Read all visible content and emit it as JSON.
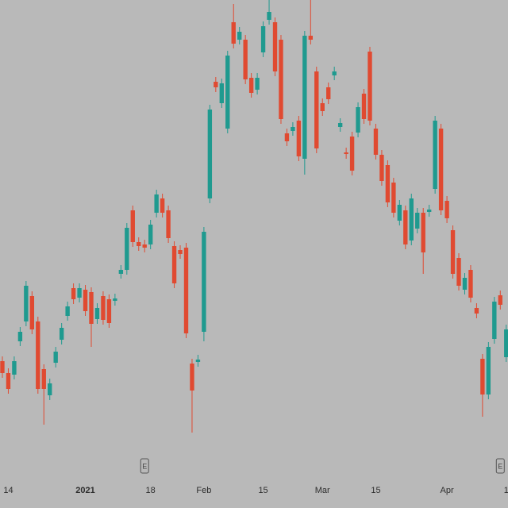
{
  "chart_data": {
    "type": "candlestick",
    "up_color": "#1f9a8f",
    "down_color": "#e04a31",
    "ylim": [
      0,
      640
    ],
    "xlim": [
      -0.4,
      85.3
    ],
    "xticks": [
      {
        "value": 1,
        "label": "14"
      },
      {
        "value": 14,
        "label": "2021"
      },
      {
        "value": 25,
        "label": "18"
      },
      {
        "value": 34,
        "label": "Feb"
      },
      {
        "value": 44,
        "label": "15"
      },
      {
        "value": 54,
        "label": "Mar"
      },
      {
        "value": 63,
        "label": "15"
      },
      {
        "value": 75,
        "label": "Apr"
      },
      {
        "value": 85,
        "label": "1"
      }
    ],
    "events": [
      {
        "index": 24,
        "label": "E"
      },
      {
        "index": 84,
        "label": "E"
      }
    ],
    "open": [
      185,
      170,
      168,
      210,
      235,
      267,
      235,
      175,
      142,
      183,
      212,
      242,
      277,
      265,
      275,
      272,
      238,
      267,
      263,
      261,
      295,
      300,
      375,
      335,
      332,
      332,
      372,
      390,
      375,
      330,
      325,
      328,
      182,
      184,
      222,
      390,
      537,
      510,
      478,
      612,
      590,
      590,
      542,
      527,
      574,
      615,
      612,
      590,
      472,
      475,
      488,
      440,
      595,
      550,
      510,
      530,
      545,
      480,
      448,
      468,
      473,
      522,
      575,
      478,
      445,
      432,
      410,
      362,
      375,
      337,
      352,
      372,
      373,
      402,
      478,
      387,
      350,
      315,
      275,
      300,
      252,
      188,
      143,
      213,
      268,
      190
    ],
    "high": [
      191,
      176,
      191,
      228,
      286,
      273,
      241,
      181,
      163,
      203,
      233,
      260,
      283,
      283,
      281,
      278,
      258,
      273,
      269,
      270,
      306,
      359,
      381,
      341,
      338,
      363,
      401,
      396,
      381,
      336,
      331,
      334,
      188,
      193,
      354,
      508,
      543,
      541,
      576,
      635,
      606,
      596,
      548,
      548,
      613,
      640,
      618,
      596,
      478,
      486,
      494,
      601,
      640,
      556,
      516,
      536,
      556,
      491,
      454,
      474,
      511,
      528,
      581,
      484,
      451,
      438,
      416,
      388,
      381,
      396,
      378,
      378,
      382,
      494,
      484,
      393,
      356,
      321,
      296,
      306,
      258,
      194,
      209,
      266,
      274,
      231
    ],
    "low": [
      164,
      144,
      162,
      204,
      229,
      219,
      144,
      105,
      136,
      177,
      206,
      236,
      257,
      259,
      242,
      203,
      232,
      231,
      227,
      255,
      289,
      294,
      329,
      324,
      322,
      326,
      366,
      366,
      334,
      277,
      314,
      214,
      95,
      178,
      210,
      384,
      524,
      504,
      472,
      579,
      584,
      534,
      517,
      521,
      568,
      609,
      544,
      484,
      456,
      469,
      437,
      420,
      584,
      447,
      494,
      509,
      539,
      474,
      440,
      419,
      467,
      484,
      482,
      439,
      406,
      379,
      366,
      356,
      326,
      331,
      346,
      295,
      367,
      396,
      369,
      359,
      289,
      274,
      269,
      259,
      239,
      115,
      137,
      207,
      250,
      184
    ],
    "close": [
      170,
      150,
      185,
      222,
      280,
      225,
      150,
      150,
      157,
      197,
      227,
      254,
      263,
      277,
      248,
      232,
      252,
      237,
      233,
      264,
      300,
      353,
      335,
      330,
      328,
      357,
      395,
      372,
      340,
      283,
      320,
      220,
      148,
      187,
      348,
      502,
      530,
      535,
      570,
      585,
      600,
      540,
      523,
      542,
      607,
      625,
      550,
      490,
      462,
      480,
      443,
      595,
      590,
      453,
      500,
      515,
      550,
      485,
      446,
      425,
      505,
      490,
      488,
      445,
      412,
      385,
      372,
      382,
      332,
      390,
      372,
      322,
      376,
      488,
      375,
      365,
      295,
      280,
      290,
      265,
      245,
      143,
      203,
      260,
      256,
      225
    ]
  }
}
